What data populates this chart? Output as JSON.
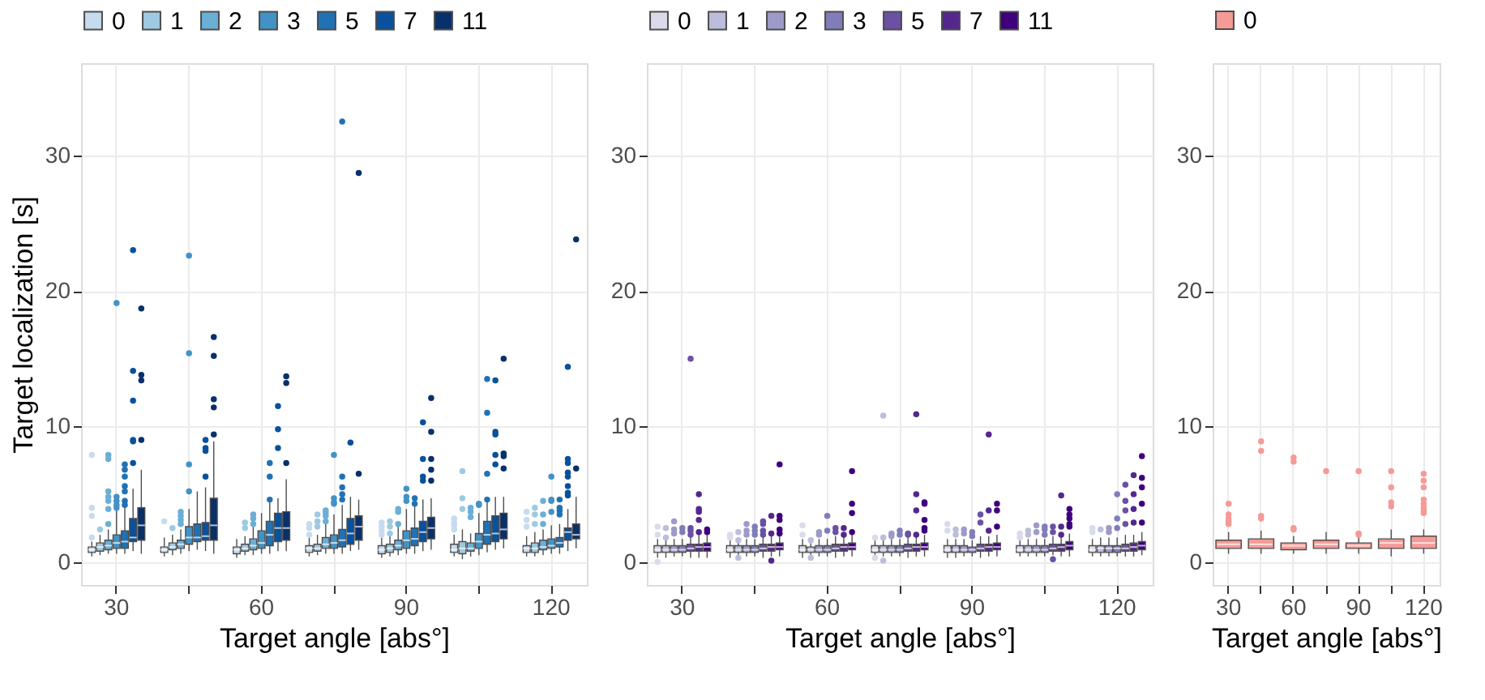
{
  "chart_data": [
    {
      "type": "box",
      "xlabel": "Target angle [abs°]",
      "ylabel": "Target localization [s]",
      "categories": [
        "30",
        null,
        "60",
        null,
        "90",
        null,
        "120"
      ],
      "ylim": [
        -1.7,
        36.8
      ],
      "yticks": [
        0,
        10,
        20,
        30
      ],
      "grid": true,
      "legend": "top",
      "series": [
        {
          "name": "0",
          "color": "#c6dbef",
          "boxes": [
            {
              "low": 0.4,
              "q1": 0.7,
              "median": 0.9,
              "q3": 1.1,
              "high": 1.5,
              "outliers": [
                7.9,
                4.0,
                3.4,
                1.8
              ]
            },
            {
              "low": 0.4,
              "q1": 0.7,
              "median": 0.9,
              "q3": 1.1,
              "high": 1.8,
              "outliers": [
                3.0
              ]
            },
            {
              "low": 0.3,
              "q1": 0.6,
              "median": 0.9,
              "q3": 1.1,
              "high": 1.7
            },
            {
              "low": 0.4,
              "q1": 0.7,
              "median": 1.0,
              "q3": 1.2,
              "high": 1.8,
              "outliers": [
                2.8,
                2.5,
                2.0
              ]
            },
            {
              "low": 0.3,
              "q1": 0.6,
              "median": 0.9,
              "q3": 1.2,
              "high": 1.8,
              "outliers": [
                2.9,
                2.6,
                2.3,
                2.0
              ]
            },
            {
              "low": 0.4,
              "q1": 0.7,
              "median": 0.9,
              "q3": 1.3,
              "high": 2.0,
              "outliers": [
                3.2,
                2.9,
                2.7,
                2.4
              ]
            },
            {
              "low": 0.4,
              "q1": 0.7,
              "median": 1.0,
              "q3": 1.2,
              "high": 1.9,
              "outliers": [
                3.7,
                3.1,
                2.6
              ]
            }
          ]
        },
        {
          "name": "1",
          "color": "#9ecae1",
          "boxes": [
            {
              "low": 0.5,
              "q1": 0.8,
              "median": 1.1,
              "q3": 1.4,
              "high": 2.0,
              "outliers": [
                2.4
              ]
            },
            {
              "low": 0.5,
              "q1": 0.9,
              "median": 1.1,
              "q3": 1.4,
              "high": 2.0,
              "outliers": [
                2.5
              ]
            },
            {
              "low": 0.5,
              "q1": 0.8,
              "median": 1.0,
              "q3": 1.3,
              "high": 1.9,
              "outliers": [
                2.9,
                2.5
              ]
            },
            {
              "low": 0.5,
              "q1": 0.8,
              "median": 1.0,
              "q3": 1.3,
              "high": 2.0,
              "outliers": [
                3.5,
                3.0,
                2.6
              ]
            },
            {
              "low": 0.4,
              "q1": 0.7,
              "median": 1.0,
              "q3": 1.3,
              "high": 1.9,
              "outliers": [
                3.0,
                2.6,
                2.1
              ]
            },
            {
              "low": 0.2,
              "q1": 0.6,
              "median": 1.0,
              "q3": 1.5,
              "high": 2.4,
              "outliers": [
                6.7,
                4.7,
                3.9
              ]
            },
            {
              "low": 0.4,
              "q1": 0.7,
              "median": 1.0,
              "q3": 1.4,
              "high": 2.2,
              "outliers": [
                4.0,
                3.5,
                2.8
              ]
            }
          ]
        },
        {
          "name": "2",
          "color": "#6baed6",
          "boxes": [
            {
              "low": 0.6,
              "q1": 0.9,
              "median": 1.2,
              "q3": 1.6,
              "high": 2.4,
              "outliers": [
                7.9,
                7.6,
                5.2,
                4.8,
                4.5,
                3.9,
                2.8
              ]
            },
            {
              "low": 0.6,
              "q1": 1.0,
              "median": 1.3,
              "q3": 1.6,
              "high": 2.4,
              "outliers": [
                3.7,
                3.4,
                3.1,
                2.8
              ]
            },
            {
              "low": 0.5,
              "q1": 0.9,
              "median": 1.2,
              "q3": 1.7,
              "high": 2.6,
              "outliers": [
                3.5,
                3.2,
                2.8
              ]
            },
            {
              "low": 0.6,
              "q1": 1.0,
              "median": 1.3,
              "q3": 1.8,
              "high": 2.8,
              "outliers": [
                3.8,
                3.6,
                3.4,
                3.0
              ]
            },
            {
              "low": 0.5,
              "q1": 0.9,
              "median": 1.2,
              "q3": 1.6,
              "high": 2.6,
              "outliers": [
                3.9,
                3.7,
                2.8
              ]
            },
            {
              "low": 0.4,
              "q1": 0.8,
              "median": 1.0,
              "q3": 1.4,
              "high": 2.1,
              "outliers": [
                4.0,
                3.7,
                3.3
              ]
            },
            {
              "low": 0.5,
              "q1": 0.9,
              "median": 1.1,
              "q3": 1.6,
              "high": 2.4,
              "outliers": [
                4.5,
                3.5,
                2.8
              ]
            }
          ]
        },
        {
          "name": "3",
          "color": "#4292c6",
          "boxes": [
            {
              "low": 0.6,
              "q1": 1.0,
              "median": 1.4,
              "q3": 2.0,
              "high": 3.9,
              "outliers": [
                19.1,
                4.8,
                4.5,
                4.2,
                4.0
              ]
            },
            {
              "low": 0.8,
              "q1": 1.3,
              "median": 1.8,
              "q3": 2.6,
              "high": 3.9,
              "outliers": [
                22.6,
                15.4,
                7.2,
                5.2
              ]
            },
            {
              "low": 0.6,
              "q1": 1.0,
              "median": 1.4,
              "q3": 2.3,
              "high": 3.6
            },
            {
              "low": 0.6,
              "q1": 1.0,
              "median": 1.4,
              "q3": 2.0,
              "high": 3.5,
              "outliers": [
                7.9,
                4.7,
                4.4,
                4.3
              ]
            },
            {
              "low": 0.6,
              "q1": 1.0,
              "median": 1.6,
              "q3": 2.3,
              "high": 3.9,
              "outliers": [
                5.4,
                4.8,
                4.5
              ]
            },
            {
              "low": 0.5,
              "q1": 1.0,
              "median": 1.5,
              "q3": 2.1,
              "high": 3.6,
              "outliers": [
                4.3,
                4.2
              ]
            },
            {
              "low": 0.6,
              "q1": 1.0,
              "median": 1.2,
              "q3": 1.7,
              "high": 2.7,
              "outliers": [
                6.3,
                4.6,
                4.5,
                3.7
              ]
            }
          ]
        },
        {
          "name": "5",
          "color": "#2171b5",
          "boxes": [
            {
              "low": 0.6,
              "q1": 1.0,
              "median": 1.5,
              "q3": 2.3,
              "high": 4.0,
              "outliers": [
                7.2,
                6.8,
                6.3,
                5.6,
                5.2,
                4.5,
                4.2
              ]
            },
            {
              "low": 0.9,
              "q1": 1.5,
              "median": 1.8,
              "q3": 2.8,
              "high": 5.2
            },
            {
              "low": 0.6,
              "q1": 1.2,
              "median": 2.0,
              "q3": 3.0,
              "high": 4.7,
              "outliers": [
                7.3,
                6.3,
                4.6
              ]
            },
            {
              "low": 0.6,
              "q1": 1.1,
              "median": 1.6,
              "q3": 2.4,
              "high": 4.2,
              "outliers": [
                32.5,
                6.3,
                5.5,
                5.0,
                4.6
              ]
            },
            {
              "low": 0.6,
              "q1": 1.2,
              "median": 1.7,
              "q3": 2.5,
              "high": 4.2,
              "outliers": [
                4.7,
                4.3
              ]
            },
            {
              "low": 0.7,
              "q1": 1.3,
              "median": 2.0,
              "q3": 3.0,
              "high": 4.5,
              "outliers": [
                13.5,
                11.0,
                6.5,
                4.6
              ]
            },
            {
              "low": 0.6,
              "q1": 1.1,
              "median": 1.4,
              "q3": 1.8,
              "high": 2.8,
              "outliers": [
                4.6,
                4.0,
                3.8,
                3.5
              ]
            }
          ]
        },
        {
          "name": "7",
          "color": "#08519c",
          "boxes": [
            {
              "low": 0.8,
              "q1": 1.5,
              "median": 1.8,
              "q3": 3.2,
              "high": 5.4,
              "outliers": [
                23.0,
                14.1,
                11.9,
                9.0,
                8.9,
                7.3
              ]
            },
            {
              "low": 0.8,
              "q1": 1.6,
              "median": 1.9,
              "q3": 2.9,
              "high": 5.5,
              "outliers": [
                9.0,
                8.4,
                8.2,
                6.3
              ]
            },
            {
              "low": 0.8,
              "q1": 1.5,
              "median": 2.5,
              "q3": 3.6,
              "high": 4.7,
              "outliers": [
                11.5,
                9.8,
                8.4
              ]
            },
            {
              "low": 0.8,
              "q1": 1.3,
              "median": 2.1,
              "q3": 3.2,
              "high": 4.8,
              "outliers": [
                8.8
              ]
            },
            {
              "low": 0.8,
              "q1": 1.5,
              "median": 2.2,
              "q3": 3.0,
              "high": 4.6,
              "outliers": [
                10.3,
                7.6,
                6.3,
                6.0
              ]
            },
            {
              "low": 0.9,
              "q1": 1.5,
              "median": 2.1,
              "q3": 3.4,
              "high": 4.8,
              "outliers": [
                13.4,
                9.6,
                9.4,
                7.9,
                7.2
              ]
            },
            {
              "low": 0.8,
              "q1": 1.6,
              "median": 2.2,
              "q3": 2.5,
              "high": 3.9,
              "outliers": [
                14.4,
                7.6,
                7.3,
                6.6,
                6.3,
                5.6,
                5.1,
                4.9
              ]
            }
          ]
        },
        {
          "name": "11",
          "color": "#08306b",
          "boxes": [
            {
              "low": 0.6,
              "q1": 1.6,
              "median": 2.7,
              "q3": 4.0,
              "high": 6.8,
              "outliers": [
                18.7,
                13.8,
                13.4,
                9.0
              ]
            },
            {
              "low": 0.6,
              "q1": 1.6,
              "median": 2.7,
              "q3": 4.7,
              "high": 8.9,
              "outliers": [
                16.6,
                15.2,
                12.0,
                11.4,
                9.4
              ]
            },
            {
              "low": 0.8,
              "q1": 1.6,
              "median": 2.5,
              "q3": 3.7,
              "high": 6.1,
              "outliers": [
                13.7,
                13.2,
                7.3
              ]
            },
            {
              "low": 0.9,
              "q1": 1.6,
              "median": 2.6,
              "q3": 3.4,
              "high": 4.6,
              "outliers": [
                28.7,
                6.5
              ]
            },
            {
              "low": 0.9,
              "q1": 1.7,
              "median": 2.5,
              "q3": 3.3,
              "high": 4.7,
              "outliers": [
                12.1,
                9.6,
                7.6,
                6.8,
                6.0
              ]
            },
            {
              "low": 1.0,
              "q1": 1.7,
              "median": 2.4,
              "q3": 3.6,
              "high": 4.8,
              "outliers": [
                15.0,
                8.0,
                7.8,
                6.9
              ]
            },
            {
              "low": 1.0,
              "q1": 1.7,
              "median": 2.0,
              "q3": 2.8,
              "high": 4.8,
              "outliers": [
                23.8,
                6.9
              ]
            }
          ]
        }
      ]
    },
    {
      "type": "box",
      "xlabel": "Target angle [abs°]",
      "categories": [
        "30",
        null,
        "60",
        null,
        "90",
        null,
        "120"
      ],
      "ylim": [
        -1.7,
        36.8
      ],
      "yticks": [
        0,
        10,
        20,
        30
      ],
      "grid": true,
      "legend": "top",
      "series": [
        {
          "name": "0",
          "color": "#dadaeb",
          "boxes": [
            {
              "low": 0.3,
              "q1": 0.7,
              "median": 0.9,
              "q3": 1.2,
              "high": 1.7,
              "outliers": [
                2.6,
                2.0,
                0.0
              ]
            },
            {
              "low": 0.3,
              "q1": 0.7,
              "median": 0.9,
              "q3": 1.2,
              "high": 1.7,
              "outliers": [
                2.0,
                1.8
              ]
            },
            {
              "low": 0.3,
              "q1": 0.7,
              "median": 0.9,
              "q3": 1.2,
              "high": 1.7,
              "outliers": [
                2.7,
                2.0
              ]
            },
            {
              "low": 0.4,
              "q1": 0.7,
              "median": 0.9,
              "q3": 1.2,
              "high": 1.6,
              "outliers": [
                1.8,
                0.3
              ]
            },
            {
              "low": 0.3,
              "q1": 0.7,
              "median": 0.9,
              "q3": 1.2,
              "high": 1.7,
              "outliers": [
                2.8,
                2.3
              ]
            },
            {
              "low": 0.4,
              "q1": 0.7,
              "median": 0.9,
              "q3": 1.2,
              "high": 1.6,
              "outliers": [
                2.1,
                1.8
              ]
            },
            {
              "low": 0.4,
              "q1": 0.7,
              "median": 0.9,
              "q3": 1.2,
              "high": 1.7,
              "outliers": [
                2.5,
                2.2
              ]
            }
          ]
        },
        {
          "name": "1",
          "color": "#bcbddc",
          "boxes": [
            {
              "low": 0.3,
              "q1": 0.7,
              "median": 0.9,
              "q3": 1.2,
              "high": 1.6,
              "outliers": [
                2.5,
                1.8
              ]
            },
            {
              "low": 0.5,
              "q1": 0.7,
              "median": 0.9,
              "q3": 1.2,
              "high": 1.5,
              "outliers": [
                2.2,
                1.6,
                0.3
              ]
            },
            {
              "low": 0.5,
              "q1": 0.7,
              "median": 0.9,
              "q3": 1.1,
              "high": 1.4,
              "outliers": [
                1.6,
                0.3
              ]
            },
            {
              "low": 0.4,
              "q1": 0.7,
              "median": 0.9,
              "q3": 1.2,
              "high": 1.6,
              "outliers": [
                10.8,
                1.8,
                0.1
              ]
            },
            {
              "low": 0.3,
              "q1": 0.7,
              "median": 0.9,
              "q3": 1.2,
              "high": 1.7,
              "outliers": [
                2.4,
                2.0
              ]
            },
            {
              "low": 0.4,
              "q1": 0.7,
              "median": 0.9,
              "q3": 1.2,
              "high": 1.7,
              "outliers": [
                2.3,
                2.0
              ]
            },
            {
              "low": 0.4,
              "q1": 0.7,
              "median": 1.0,
              "q3": 1.2,
              "high": 1.8,
              "outliers": [
                2.4
              ]
            }
          ]
        },
        {
          "name": "2",
          "color": "#9e9ac8",
          "boxes": [
            {
              "low": 0.4,
              "q1": 0.7,
              "median": 0.9,
              "q3": 1.2,
              "high": 1.7,
              "outliers": [
                3.0,
                2.4,
                2.1
              ]
            },
            {
              "low": 0.4,
              "q1": 0.7,
              "median": 0.9,
              "q3": 1.2,
              "high": 1.7,
              "outliers": [
                2.8,
                2.3,
                2.0
              ]
            },
            {
              "low": 0.4,
              "q1": 0.7,
              "median": 0.9,
              "q3": 1.2,
              "high": 1.7,
              "outliers": [
                2.2,
                2.0
              ]
            },
            {
              "low": 0.4,
              "q1": 0.7,
              "median": 0.9,
              "q3": 1.2,
              "high": 1.7,
              "outliers": [
                2.1,
                1.9
              ]
            },
            {
              "low": 0.4,
              "q1": 0.7,
              "median": 0.9,
              "q3": 1.2,
              "high": 1.7,
              "outliers": [
                2.4,
                2.1
              ]
            },
            {
              "low": 0.4,
              "q1": 0.7,
              "median": 0.9,
              "q3": 1.2,
              "high": 1.7,
              "outliers": [
                2.7,
                2.2
              ]
            },
            {
              "low": 0.4,
              "q1": 0.7,
              "median": 1.0,
              "q3": 1.2,
              "high": 1.8,
              "outliers": [
                2.5,
                2.2
              ]
            }
          ]
        },
        {
          "name": "3",
          "color": "#807dba",
          "boxes": [
            {
              "low": 0.4,
              "q1": 0.7,
              "median": 0.9,
              "q3": 1.2,
              "high": 1.7,
              "outliers": [
                2.5,
                2.2
              ]
            },
            {
              "low": 0.4,
              "q1": 0.7,
              "median": 0.9,
              "q3": 1.2,
              "high": 1.7,
              "outliers": [
                2.6,
                2.3,
                2.0
              ]
            },
            {
              "low": 0.4,
              "q1": 0.7,
              "median": 0.9,
              "q3": 1.2,
              "high": 1.7,
              "outliers": [
                3.4,
                2.3
              ]
            },
            {
              "low": 0.4,
              "q1": 0.7,
              "median": 0.9,
              "q3": 1.2,
              "high": 1.7,
              "outliers": [
                2.3,
                2.0
              ]
            },
            {
              "low": 0.4,
              "q1": 0.7,
              "median": 0.9,
              "q3": 1.1,
              "high": 1.6,
              "outliers": [
                2.2,
                1.9
              ]
            },
            {
              "low": 0.4,
              "q1": 0.7,
              "median": 0.9,
              "q3": 1.2,
              "high": 1.7,
              "outliers": [
                2.6,
                2.4,
                2.0
              ]
            },
            {
              "low": 0.4,
              "q1": 0.7,
              "median": 1.0,
              "q3": 1.2,
              "high": 1.8,
              "outliers": [
                5.0,
                3.2,
                2.5
              ]
            }
          ]
        },
        {
          "name": "5",
          "color": "#6a51a3",
          "boxes": [
            {
              "low": 0.3,
              "q1": 0.8,
              "median": 1.0,
              "q3": 1.3,
              "high": 1.9,
              "outliers": [
                15.0,
                2.5,
                2.3,
                2.0
              ]
            },
            {
              "low": 0.3,
              "q1": 0.8,
              "median": 1.0,
              "q3": 1.3,
              "high": 1.9,
              "outliers": [
                3.0,
                2.8,
                2.3,
                2.0
              ]
            },
            {
              "low": 0.3,
              "q1": 0.8,
              "median": 1.0,
              "q3": 1.3,
              "high": 1.9,
              "outliers": [
                2.5,
                2.2
              ]
            },
            {
              "low": 0.3,
              "q1": 0.8,
              "median": 1.0,
              "q3": 1.3,
              "high": 1.9,
              "outliers": [
                2.1,
                2.0
              ]
            },
            {
              "low": 0.3,
              "q1": 0.8,
              "median": 1.0,
              "q3": 1.3,
              "high": 1.9,
              "outliers": [
                3.5,
                2.9
              ]
            },
            {
              "low": 0.5,
              "q1": 0.8,
              "median": 1.0,
              "q3": 1.3,
              "high": 1.9,
              "outliers": [
                2.6,
                2.2,
                0.2
              ]
            },
            {
              "low": 0.4,
              "q1": 0.8,
              "median": 1.0,
              "q3": 1.3,
              "high": 2.0,
              "outliers": [
                5.7,
                4.5,
                3.8,
                2.8
              ]
            }
          ]
        },
        {
          "name": "7",
          "color": "#54278f",
          "boxes": [
            {
              "low": 0.3,
              "q1": 0.8,
              "median": 1.1,
              "q3": 1.3,
              "high": 2.0,
              "outliers": [
                5.0,
                3.9,
                3.7,
                3.1,
                2.2
              ]
            },
            {
              "low": 0.4,
              "q1": 0.8,
              "median": 1.1,
              "q3": 1.3,
              "high": 1.9,
              "outliers": [
                3.4,
                2.1,
                0.1
              ]
            },
            {
              "low": 0.4,
              "q1": 0.8,
              "median": 1.1,
              "q3": 1.3,
              "high": 1.9,
              "outliers": [
                2.5,
                2.0
              ]
            },
            {
              "low": 0.4,
              "q1": 0.8,
              "median": 1.1,
              "q3": 1.3,
              "high": 1.9,
              "outliers": [
                10.9,
                5.0,
                3.8,
                2.0
              ]
            },
            {
              "low": 0.4,
              "q1": 0.8,
              "median": 1.1,
              "q3": 1.3,
              "high": 1.9,
              "outliers": [
                9.4,
                3.8,
                2.3
              ]
            },
            {
              "low": 0.4,
              "q1": 0.8,
              "median": 1.1,
              "q3": 1.3,
              "high": 1.9,
              "outliers": [
                4.9,
                2.6,
                2.0
              ]
            },
            {
              "low": 0.4,
              "q1": 0.8,
              "median": 1.1,
              "q3": 1.4,
              "high": 2.0,
              "outliers": [
                6.4,
                5.0,
                3.9,
                2.9
              ]
            }
          ]
        },
        {
          "name": "11",
          "color": "#3f007d",
          "boxes": [
            {
              "low": 0.3,
              "q1": 0.8,
              "median": 1.1,
              "q3": 1.4,
              "high": 2.0,
              "outliers": [
                2.4,
                2.2
              ]
            },
            {
              "low": 0.4,
              "q1": 0.9,
              "median": 1.1,
              "q3": 1.4,
              "high": 2.0,
              "outliers": [
                7.2,
                3.4,
                3.1,
                2.4,
                2.1
              ]
            },
            {
              "low": 0.4,
              "q1": 0.9,
              "median": 1.1,
              "q3": 1.4,
              "high": 2.0,
              "outliers": [
                6.7,
                4.3,
                3.6,
                2.2
              ]
            },
            {
              "low": 0.4,
              "q1": 0.9,
              "median": 1.1,
              "q3": 1.4,
              "high": 2.0,
              "outliers": [
                4.4,
                4.3,
                3.1,
                2.5,
                2.3
              ]
            },
            {
              "low": 0.4,
              "q1": 0.9,
              "median": 1.1,
              "q3": 1.4,
              "high": 2.0,
              "outliers": [
                4.3,
                3.8,
                2.6
              ]
            },
            {
              "low": 0.4,
              "q1": 0.9,
              "median": 1.2,
              "q3": 1.5,
              "high": 2.1,
              "outliers": [
                3.9,
                3.5,
                3.2,
                2.8,
                2.6
              ]
            },
            {
              "low": 0.5,
              "q1": 0.9,
              "median": 1.2,
              "q3": 1.5,
              "high": 2.2,
              "outliers": [
                7.8,
                6.2,
                5.5,
                4.3,
                2.9
              ]
            }
          ]
        }
      ]
    },
    {
      "type": "box",
      "xlabel": "Target angle [abs°]",
      "categories": [
        "30",
        null,
        "60",
        null,
        "90",
        null,
        "120"
      ],
      "ylim": [
        -1.7,
        36.8
      ],
      "yticks": [
        0,
        10,
        20,
        30
      ],
      "grid": true,
      "legend": "top",
      "series": [
        {
          "name": "0",
          "color": "#f69a96",
          "boxes": [
            {
              "low": 0.6,
              "q1": 1.0,
              "median": 1.3,
              "q3": 1.6,
              "high": 2.2,
              "outliers": [
                4.3,
                3.5,
                3.2,
                3.0,
                2.8
              ]
            },
            {
              "low": 0.6,
              "q1": 1.0,
              "median": 1.3,
              "q3": 1.7,
              "high": 2.3,
              "outliers": [
                8.9,
                8.2,
                3.4,
                3.2
              ]
            },
            {
              "low": 0.6,
              "q1": 0.9,
              "median": 1.2,
              "q3": 1.4,
              "high": 1.9,
              "outliers": [
                7.7,
                7.4,
                2.5,
                2.4
              ]
            },
            {
              "low": 0.6,
              "q1": 1.0,
              "median": 1.3,
              "q3": 1.6,
              "high": 2.2,
              "outliers": [
                6.7
              ]
            },
            {
              "low": 0.6,
              "q1": 1.0,
              "median": 1.2,
              "q3": 1.4,
              "high": 2.0,
              "outliers": [
                6.7,
                2.1,
                2.0
              ]
            },
            {
              "low": 0.4,
              "q1": 1.0,
              "median": 1.4,
              "q3": 1.7,
              "high": 2.4,
              "outliers": [
                6.7,
                5.5,
                4.4,
                4.1
              ]
            },
            {
              "low": 0.6,
              "q1": 1.0,
              "median": 1.4,
              "q3": 1.9,
              "high": 2.4,
              "outliers": [
                6.5,
                6.0,
                5.5,
                4.6,
                4.3,
                4.0,
                3.8,
                3.6
              ]
            }
          ]
        }
      ]
    }
  ]
}
